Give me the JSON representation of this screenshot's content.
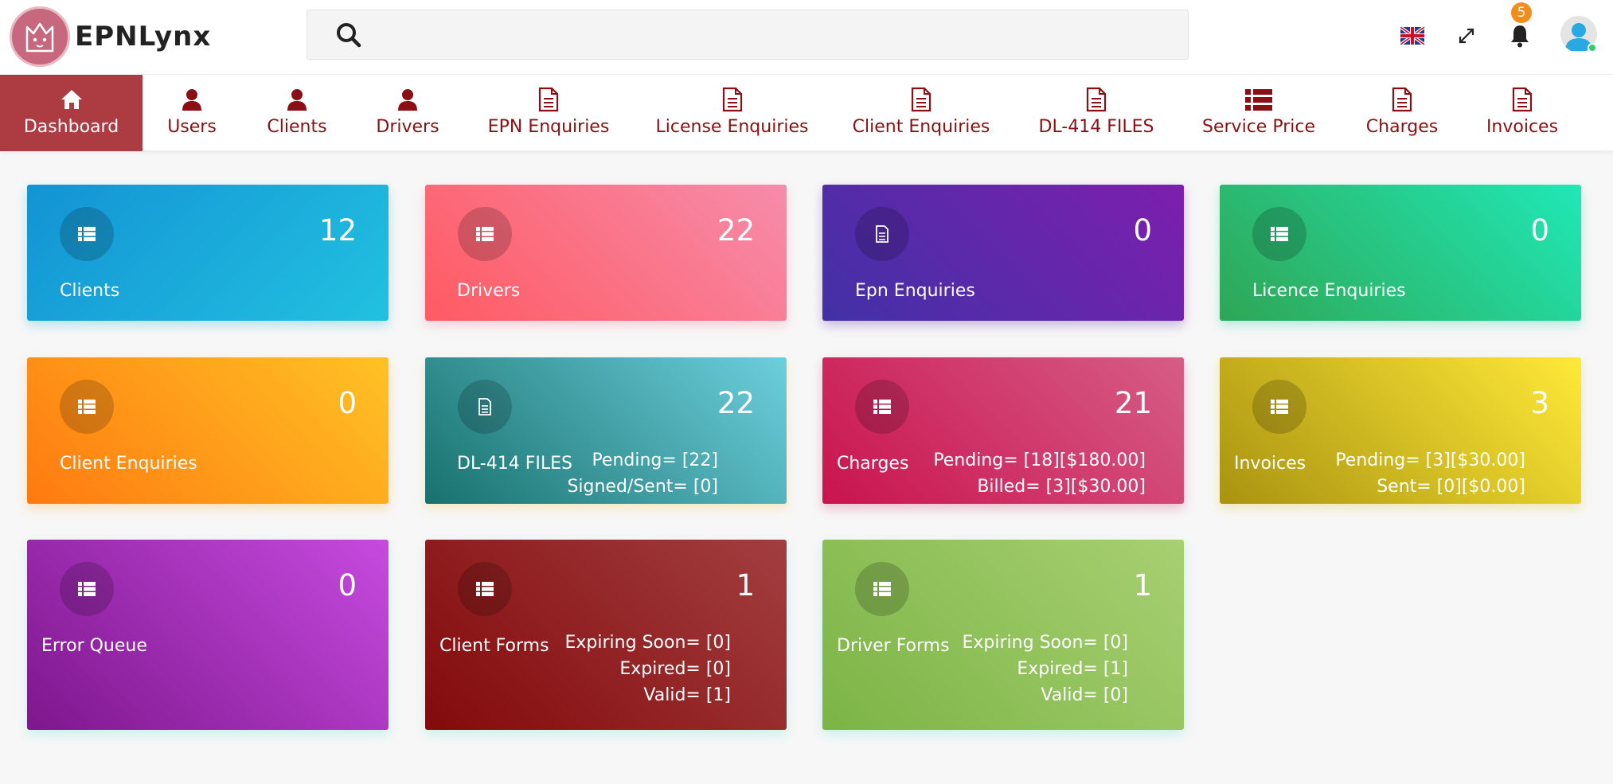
{
  "header": {
    "brand": "EPNLynx",
    "search": {
      "value": "",
      "placeholder": ""
    },
    "notifications_count": "5",
    "icons": [
      "search-icon",
      "uk-flag-icon",
      "fullscreen-icon",
      "bell-icon",
      "user-avatar-icon"
    ]
  },
  "nav": {
    "items": [
      {
        "label": "Dashboard",
        "icon": "home-icon",
        "active": true
      },
      {
        "label": "Users",
        "icon": "user-icon"
      },
      {
        "label": "Clients",
        "icon": "user-icon"
      },
      {
        "label": "Drivers",
        "icon": "user-icon"
      },
      {
        "label": "EPN Enquiries",
        "icon": "document-icon"
      },
      {
        "label": "License Enquiries",
        "icon": "document-icon"
      },
      {
        "label": "Client Enquiries",
        "icon": "document-icon"
      },
      {
        "label": "DL-414 FILES",
        "icon": "document-icon"
      },
      {
        "label": "Service Price",
        "icon": "list-icon"
      },
      {
        "label": "Charges",
        "icon": "document-icon"
      },
      {
        "label": "Invoices",
        "icon": "document-icon"
      }
    ]
  },
  "cards": [
    {
      "title": "Clients",
      "count": "12",
      "icon": "list-icon"
    },
    {
      "title": "Drivers",
      "count": "22",
      "icon": "list-icon"
    },
    {
      "title": "Epn Enquiries",
      "count": "0",
      "icon": "document-icon"
    },
    {
      "title": "Licence Enquiries",
      "count": "0",
      "icon": "list-icon"
    },
    {
      "title": "Client Enquiries",
      "count": "0",
      "icon": "list-icon"
    },
    {
      "title": "DL-414 FILES",
      "count": "22",
      "icon": "document-icon",
      "meta": [
        "Pending= [22]",
        "Signed/Sent= [0]"
      ]
    },
    {
      "title": "Charges",
      "count": "21",
      "icon": "list-icon",
      "meta": [
        "Pending= [18][$180.00]",
        "Billed= [3][$30.00]"
      ]
    },
    {
      "title": "Invoices",
      "count": "3",
      "icon": "list-icon",
      "meta": [
        "Pending= [3][$30.00]",
        "Sent= [0][$0.00]"
      ]
    },
    {
      "title": "Error Queue",
      "count": "0",
      "icon": "list-icon"
    },
    {
      "title": "Client Forms",
      "count": "1",
      "icon": "list-icon",
      "meta": [
        "Expiring Soon= [0]",
        "Expired= [0]",
        "Valid= [1]"
      ]
    },
    {
      "title": "Driver Forms",
      "count": "1",
      "icon": "list-icon",
      "meta": [
        "Expiring Soon= [0]",
        "Expired= [1]",
        "Valid= [0]"
      ]
    }
  ],
  "colors": {
    "nav_text": "#8b0f14",
    "nav_active_bg": "#ac3c41",
    "badge": "#f28c1b"
  }
}
